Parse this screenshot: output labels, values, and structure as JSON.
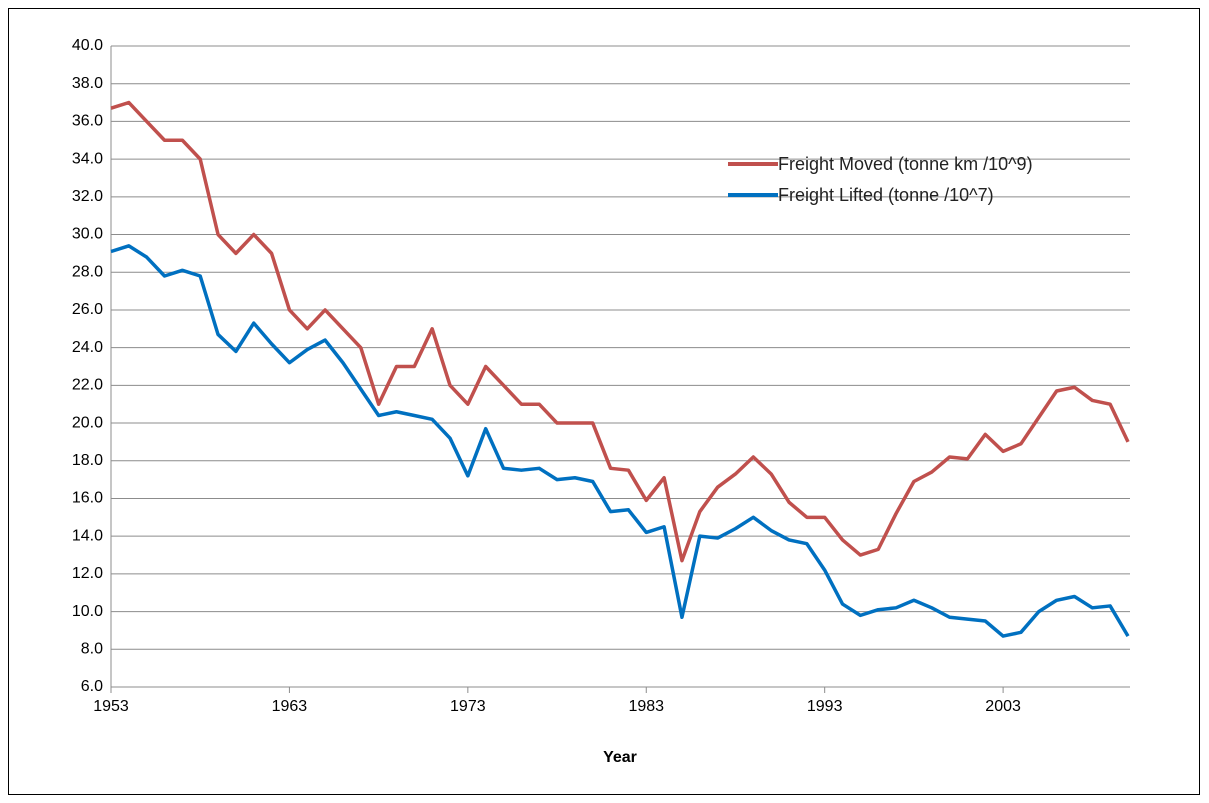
{
  "chart_data": {
    "type": "line",
    "x_label": "Year",
    "x": [
      1953,
      1954,
      1955,
      1956,
      1957,
      1958,
      1959,
      1960,
      1961,
      1962,
      1963,
      1964,
      1965,
      1966,
      1967,
      1968,
      1969,
      1970,
      1971,
      1972,
      1973,
      1974,
      1975,
      1976,
      1977,
      1978,
      1979,
      1980,
      1981,
      1982,
      1983,
      1984,
      1985,
      1986,
      1987,
      1988,
      1989,
      1990,
      1991,
      1992,
      1993,
      1994,
      1995,
      1996,
      1997,
      1998,
      1999,
      2000,
      2001,
      2002,
      2003,
      2004,
      2005,
      2006,
      2007,
      2008,
      2009,
      2010
    ],
    "series": [
      {
        "name": "Freight Moved (tonne km /10^9)",
        "color": "#c0504d",
        "values": [
          36.7,
          37.0,
          36.0,
          35.0,
          35.0,
          34.0,
          30.0,
          29.0,
          30.0,
          29.0,
          26.0,
          25.0,
          26.0,
          25.0,
          24.0,
          21.0,
          23.0,
          23.0,
          25.0,
          22.0,
          21.0,
          23.0,
          22.0,
          21.0,
          21.0,
          20.0,
          20.0,
          20.0,
          17.6,
          17.5,
          15.9,
          17.1,
          12.7,
          15.3,
          16.6,
          17.3,
          18.2,
          17.3,
          15.8,
          15.0,
          15.0,
          13.8,
          13.0,
          13.3,
          15.2,
          16.9,
          17.4,
          18.2,
          18.1,
          19.4,
          18.5,
          18.9,
          20.3,
          21.7,
          21.9,
          21.2,
          21.0,
          19.0
        ]
      },
      {
        "name": "Freight Lifted (tonne /10^7)",
        "color": "#0070c0",
        "values": [
          29.1,
          29.4,
          28.8,
          27.8,
          28.1,
          27.8,
          24.7,
          23.8,
          25.3,
          24.2,
          23.2,
          23.9,
          24.4,
          23.2,
          21.8,
          20.4,
          20.6,
          20.4,
          20.2,
          19.2,
          17.2,
          19.7,
          17.6,
          17.5,
          17.6,
          17.0,
          17.1,
          16.9,
          15.3,
          15.4,
          14.2,
          14.5,
          9.7,
          14.0,
          13.9,
          14.4,
          15.0,
          14.3,
          13.8,
          13.6,
          12.2,
          10.4,
          9.8,
          10.1,
          10.2,
          10.6,
          10.2,
          9.7,
          9.6,
          9.5,
          8.7,
          8.9,
          10.0,
          10.6,
          10.8,
          10.2,
          10.3,
          8.7
        ]
      }
    ],
    "xlim": [
      1953,
      2010
    ],
    "xticks": [
      1953,
      1963,
      1973,
      1983,
      1993,
      2003
    ],
    "ylim": [
      6,
      40
    ],
    "yticks": [
      {
        "value": 6,
        "label": "6.0"
      },
      {
        "value": 8,
        "label": "8.0"
      },
      {
        "value": 10,
        "label": "10.0"
      },
      {
        "value": 12,
        "label": "12.0"
      },
      {
        "value": 14,
        "label": "14.0"
      },
      {
        "value": 16,
        "label": "16.0"
      },
      {
        "value": 18,
        "label": "18.0"
      },
      {
        "value": 20,
        "label": "20.0"
      },
      {
        "value": 22,
        "label": "22.0"
      },
      {
        "value": 24,
        "label": "24.0"
      },
      {
        "value": 26,
        "label": "26.0"
      },
      {
        "value": 28,
        "label": "28.0"
      },
      {
        "value": 30,
        "label": "30.0"
      },
      {
        "value": 32,
        "label": "32.0"
      },
      {
        "value": 34,
        "label": "34.0"
      },
      {
        "value": 36,
        "label": "36.0"
      },
      {
        "value": 38,
        "label": "38.0"
      },
      {
        "value": 40,
        "label": "40.0"
      }
    ],
    "grid": true
  }
}
